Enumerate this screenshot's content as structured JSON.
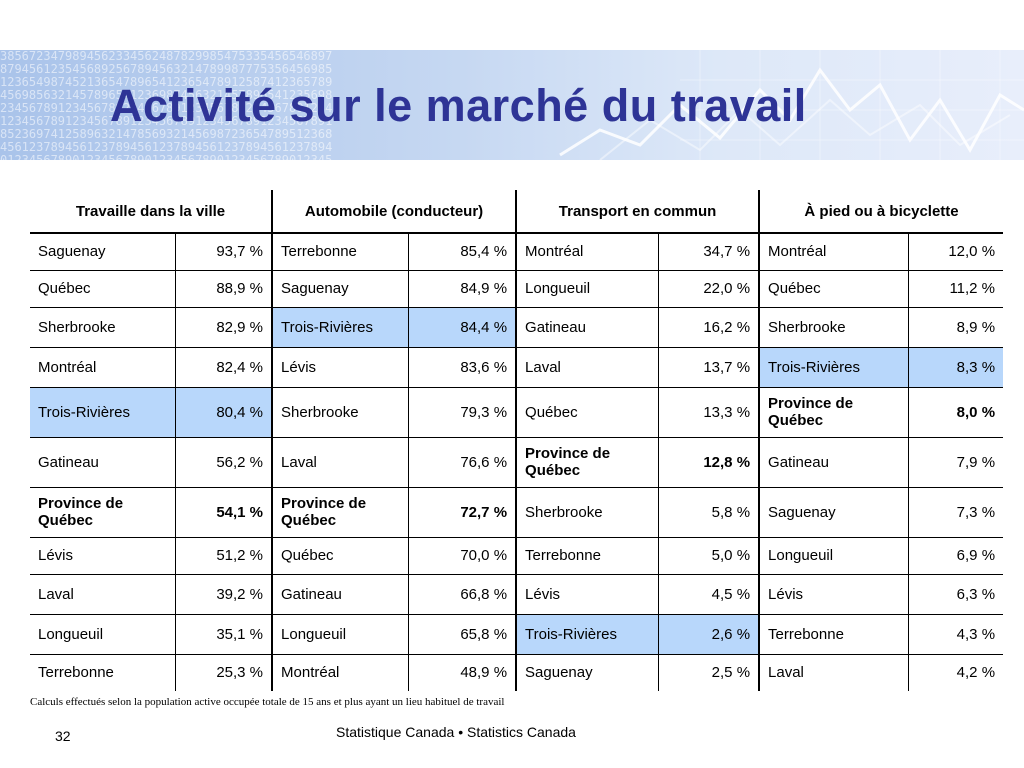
{
  "slide": {
    "title": "Activité sur le marché du travail",
    "footnote": "Calculs effectués selon la population active occupée totale de 15 ans et plus ayant un lieu habituel de travail",
    "page_number": "32",
    "source": "Statistique Canada • Statistics Canada"
  },
  "colors": {
    "title": "#2e3496",
    "highlight": "#b8d7fb"
  },
  "table": {
    "headers": [
      "Travaille dans la ville",
      "Automobile (conducteur)",
      "Transport en commun",
      "À pied ou à bicyclette"
    ],
    "rows": [
      [
        {
          "name": "Saguenay",
          "value": "93,7 %"
        },
        {
          "name": "Terrebonne",
          "value": "85,4 %"
        },
        {
          "name": "Montréal",
          "value": "34,7 %"
        },
        {
          "name": "Montréal",
          "value": "12,0 %"
        }
      ],
      [
        {
          "name": "Québec",
          "value": "88,9 %"
        },
        {
          "name": "Saguenay",
          "value": "84,9 %"
        },
        {
          "name": "Longueuil",
          "value": "22,0 %"
        },
        {
          "name": "Québec",
          "value": "11,2 %"
        }
      ],
      [
        {
          "name": "Sherbrooke",
          "value": "82,9 %"
        },
        {
          "name": "Trois-Rivières",
          "value": "84,4 %",
          "highlight": true
        },
        {
          "name": "Gatineau",
          "value": "16,2 %"
        },
        {
          "name": "Sherbrooke",
          "value": "8,9 %"
        }
      ],
      [
        {
          "name": "Montréal",
          "value": "82,4 %"
        },
        {
          "name": "Lévis",
          "value": "83,6 %"
        },
        {
          "name": "Laval",
          "value": "13,7 %"
        },
        {
          "name": "Trois-Rivières",
          "value": "8,3 %",
          "highlight": true
        }
      ],
      [
        {
          "name": "Trois-Rivières",
          "value": "80,4 %",
          "highlight": true
        },
        {
          "name": "Sherbrooke",
          "value": "79,3 %"
        },
        {
          "name": "Québec",
          "value": "13,3 %"
        },
        {
          "name": "Province de Québec",
          "value": "8,0 %",
          "bold": true
        }
      ],
      [
        {
          "name": "Gatineau",
          "value": "56,2 %"
        },
        {
          "name": "Laval",
          "value": "76,6 %"
        },
        {
          "name": "Province de Québec",
          "value": "12,8 %",
          "bold": true
        },
        {
          "name": "Gatineau",
          "value": "7,9 %"
        }
      ],
      [
        {
          "name": "Province de Québec",
          "value": "54,1 %",
          "bold": true
        },
        {
          "name": "Province de Québec",
          "value": "72,7 %",
          "bold": true
        },
        {
          "name": "Sherbrooke",
          "value": "5,8 %"
        },
        {
          "name": "Saguenay",
          "value": "7,3 %"
        }
      ],
      [
        {
          "name": "Lévis",
          "value": "51,2 %"
        },
        {
          "name": "Québec",
          "value": "70,0 %"
        },
        {
          "name": "Terrebonne",
          "value": "5,0 %"
        },
        {
          "name": "Longueuil",
          "value": "6,9 %"
        }
      ],
      [
        {
          "name": "Laval",
          "value": "39,2 %"
        },
        {
          "name": "Gatineau",
          "value": "66,8 %"
        },
        {
          "name": "Lévis",
          "value": "4,5 %"
        },
        {
          "name": "Lévis",
          "value": "6,3 %"
        }
      ],
      [
        {
          "name": "Longueuil",
          "value": "35,1 %"
        },
        {
          "name": "Longueuil",
          "value": "65,8 %"
        },
        {
          "name": "Trois-Rivières",
          "value": "2,6 %",
          "highlight": true
        },
        {
          "name": "Terrebonne",
          "value": "4,3 %"
        }
      ],
      [
        {
          "name": "Terrebonne",
          "value": "25,3 %"
        },
        {
          "name": "Montréal",
          "value": "48,9 %"
        },
        {
          "name": "Saguenay",
          "value": "2,5 %"
        },
        {
          "name": "Laval",
          "value": "4,2 %"
        }
      ]
    ]
  }
}
